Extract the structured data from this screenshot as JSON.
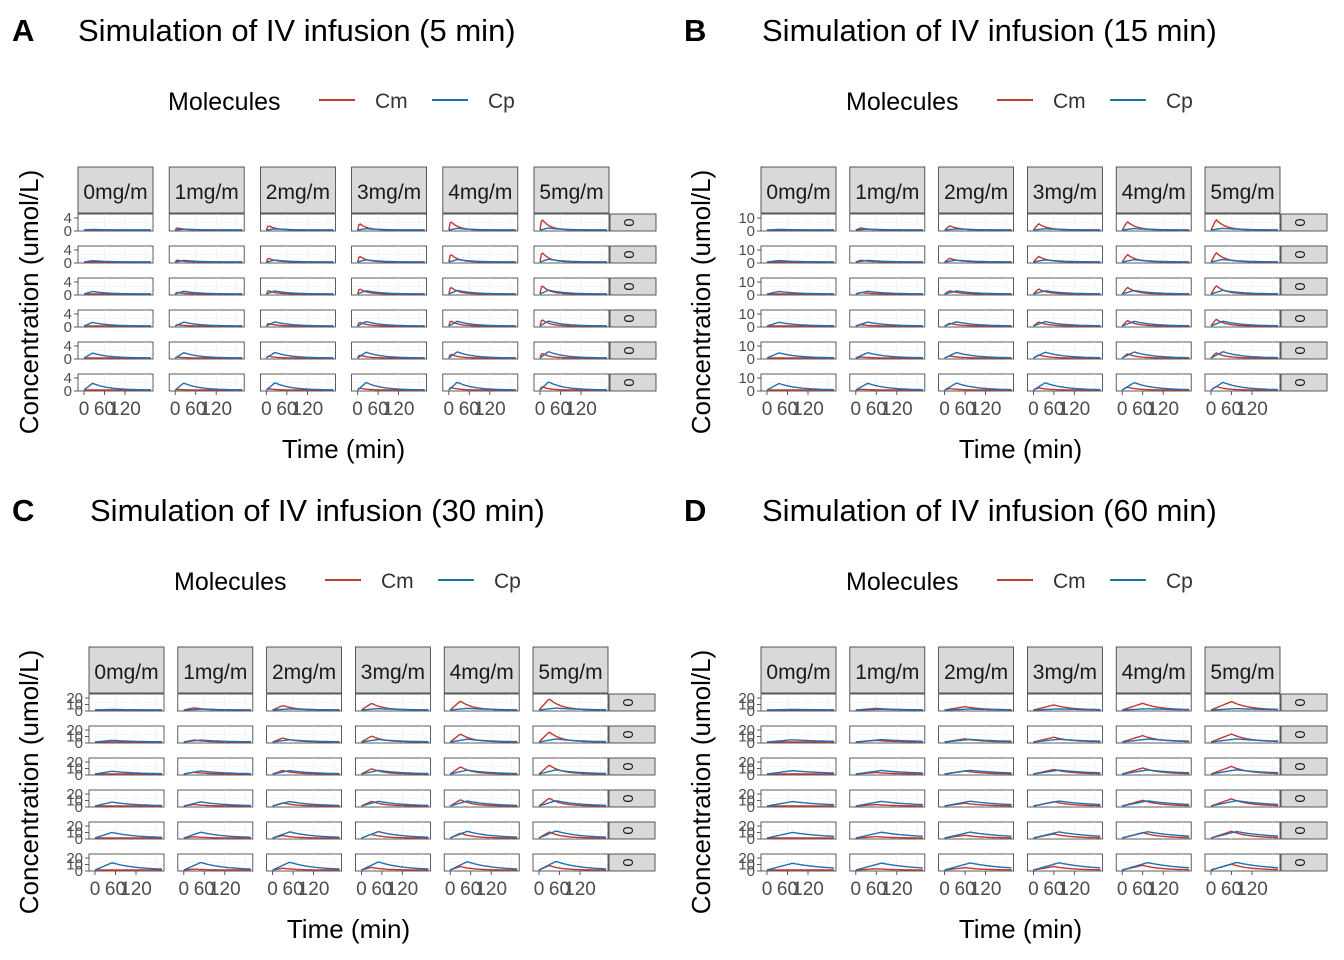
{
  "colors": {
    "Cm": "#c0392b",
    "Cp": "#1f6fb4",
    "strip": "#d9d9d9",
    "grid": "#ebebeb",
    "border": "#333333"
  },
  "chart_data": [
    {
      "type": "line",
      "panel_letter": "A",
      "title": "Simulation of IV infusion (5 min)",
      "legend_title": "Molecules",
      "legend_position": "top",
      "xlabel": "Time (min)",
      "ylabel": "Concentration (umol/L)",
      "xlim": [
        0,
        180
      ],
      "ylim": [
        0,
        5
      ],
      "x_ticks": [
        0,
        60,
        120
      ],
      "y_tick_labels": [
        "4",
        "0"
      ],
      "col_strips": [
        "0mg/m",
        "1mg/m",
        "2mg/m",
        "3mg/m",
        "4mg/m",
        "5mg/m"
      ],
      "row_strips": [
        "0",
        "0",
        "0",
        "0",
        "0",
        "0"
      ],
      "infusion_min": 5,
      "series": [
        {
          "name": "Cm",
          "peak_by_col": [
            0,
            0.8,
            1.6,
            2.4,
            3.2,
            4.0
          ],
          "row_factor": [
            1,
            0.9,
            0.8,
            0.6,
            0.45,
            0.3
          ],
          "tmax": 5
        },
        {
          "name": "Cp",
          "peak_by_row": [
            0.2,
            0.5,
            0.9,
            1.3,
            1.8,
            2.4
          ],
          "col_add": 0.1,
          "tmax": 25
        }
      ]
    },
    {
      "type": "line",
      "panel_letter": "B",
      "title": "Simulation of IV infusion (15 min)",
      "legend_title": "Molecules",
      "legend_position": "top",
      "xlabel": "Time (min)",
      "ylabel": "Concentration (umol/L)",
      "xlim": [
        0,
        180
      ],
      "ylim": [
        0,
        12
      ],
      "x_ticks": [
        0,
        60,
        120
      ],
      "y_tick_labels": [
        "10",
        "0"
      ],
      "col_strips": [
        "0mg/m",
        "1mg/m",
        "2mg/m",
        "3mg/m",
        "4mg/m",
        "5mg/m"
      ],
      "row_strips": [
        "0",
        "0",
        "0",
        "0",
        "0",
        "0"
      ],
      "infusion_min": 15,
      "series": [
        {
          "name": "Cm",
          "peak_by_col": [
            0,
            1.8,
            3.6,
            5.4,
            7.2,
            9.0
          ],
          "row_factor": [
            1,
            0.9,
            0.8,
            0.65,
            0.5,
            0.35
          ],
          "tmax": 15
        },
        {
          "name": "Cp",
          "peak_by_row": [
            0.5,
            1.2,
            2.2,
            3.2,
            4.4,
            5.6
          ],
          "col_add": 0.2,
          "tmax": 35
        }
      ]
    },
    {
      "type": "line",
      "panel_letter": "C",
      "title": "Simulation of IV infusion (30 min)",
      "legend_title": "Molecules",
      "legend_position": "top",
      "xlabel": "Time (min)",
      "ylabel": "Concentration (umol/L)",
      "xlim": [
        0,
        180
      ],
      "ylim": [
        0,
        25
      ],
      "x_ticks": [
        0,
        60,
        120
      ],
      "y_tick_labels": [
        "20",
        "10",
        "0"
      ],
      "col_strips": [
        "0mg/m",
        "1mg/m",
        "2mg/m",
        "3mg/m",
        "4mg/m",
        "5mg/m"
      ],
      "row_strips": [
        "0",
        "0",
        "0",
        "0",
        "0",
        "0"
      ],
      "infusion_min": 30,
      "series": [
        {
          "name": "Cm",
          "peak_by_col": [
            0,
            4,
            8,
            12,
            16,
            20
          ],
          "row_factor": [
            1,
            0.9,
            0.8,
            0.7,
            0.55,
            0.4
          ],
          "tmax": 30
        },
        {
          "name": "Cp",
          "peak_by_row": [
            1,
            3,
            5,
            7,
            10,
            13
          ],
          "col_add": 0.5,
          "tmax": 50
        }
      ]
    },
    {
      "type": "line",
      "panel_letter": "D",
      "title": "Simulation of IV infusion (60 min)",
      "legend_title": "Molecules",
      "legend_position": "top",
      "xlabel": "Time (min)",
      "ylabel": "Concentration (umol/L)",
      "xlim": [
        0,
        180
      ],
      "ylim": [
        0,
        25
      ],
      "x_ticks": [
        0,
        60,
        120
      ],
      "y_tick_labels": [
        "20",
        "10",
        "0"
      ],
      "col_strips": [
        "0mg/m",
        "1mg/m",
        "2mg/m",
        "3mg/m",
        "4mg/m",
        "5mg/m"
      ],
      "row_strips": [
        "0",
        "0",
        "0",
        "0",
        "0",
        "0"
      ],
      "infusion_min": 60,
      "series": [
        {
          "name": "Cm",
          "peak_by_col": [
            0,
            3,
            6,
            9,
            12,
            15
          ],
          "row_factor": [
            1,
            0.95,
            0.9,
            0.85,
            0.8,
            0.7
          ],
          "tmax": 60
        },
        {
          "name": "Cp",
          "peak_by_row": [
            1,
            4,
            6,
            8,
            10,
            12
          ],
          "col_add": 0.3,
          "tmax": 75
        }
      ]
    }
  ]
}
